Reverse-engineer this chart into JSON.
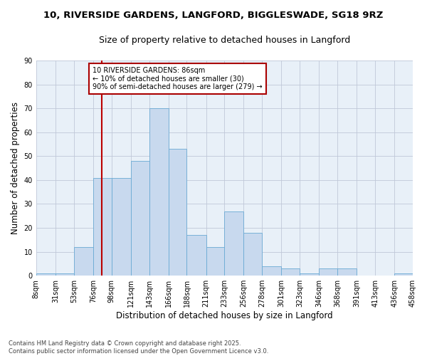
{
  "title": "10, RIVERSIDE GARDENS, LANGFORD, BIGGLESWADE, SG18 9RZ",
  "subtitle": "Size of property relative to detached houses in Langford",
  "xlabel": "Distribution of detached houses by size in Langford",
  "ylabel": "Number of detached properties",
  "bar_color": "#c8d9ee",
  "bar_edge_color": "#6aaad4",
  "background_color": "#ffffff",
  "plot_bg_color": "#e8f0f8",
  "grid_color": "#c0c8d8",
  "bin_labels": [
    "8sqm",
    "31sqm",
    "53sqm",
    "76sqm",
    "98sqm",
    "121sqm",
    "143sqm",
    "166sqm",
    "188sqm",
    "211sqm",
    "233sqm",
    "256sqm",
    "278sqm",
    "301sqm",
    "323sqm",
    "346sqm",
    "368sqm",
    "391sqm",
    "413sqm",
    "436sqm",
    "458sqm"
  ],
  "bar_values": [
    1,
    1,
    12,
    41,
    41,
    48,
    70,
    53,
    17,
    12,
    27,
    18,
    4,
    3,
    1,
    3,
    3,
    0,
    0,
    1
  ],
  "bin_edges": [
    8,
    31,
    53,
    76,
    98,
    121,
    143,
    166,
    188,
    211,
    233,
    256,
    278,
    301,
    323,
    346,
    368,
    391,
    413,
    436,
    458
  ],
  "red_line_x": 86,
  "ylim": [
    0,
    90
  ],
  "yticks": [
    0,
    10,
    20,
    30,
    40,
    50,
    60,
    70,
    80,
    90
  ],
  "annotation_text": "10 RIVERSIDE GARDENS: 86sqm\n← 10% of detached houses are smaller (30)\n90% of semi-detached houses are larger (279) →",
  "annotation_box_color": "#ffffff",
  "annotation_box_edge": "#aa0000",
  "footnote1": "Contains HM Land Registry data © Crown copyright and database right 2025.",
  "footnote2": "Contains public sector information licensed under the Open Government Licence v3.0.",
  "title_fontsize": 9.5,
  "subtitle_fontsize": 9,
  "tick_fontsize": 7,
  "ylabel_fontsize": 8.5,
  "xlabel_fontsize": 8.5,
  "annotation_fontsize": 7,
  "footnote_fontsize": 6
}
